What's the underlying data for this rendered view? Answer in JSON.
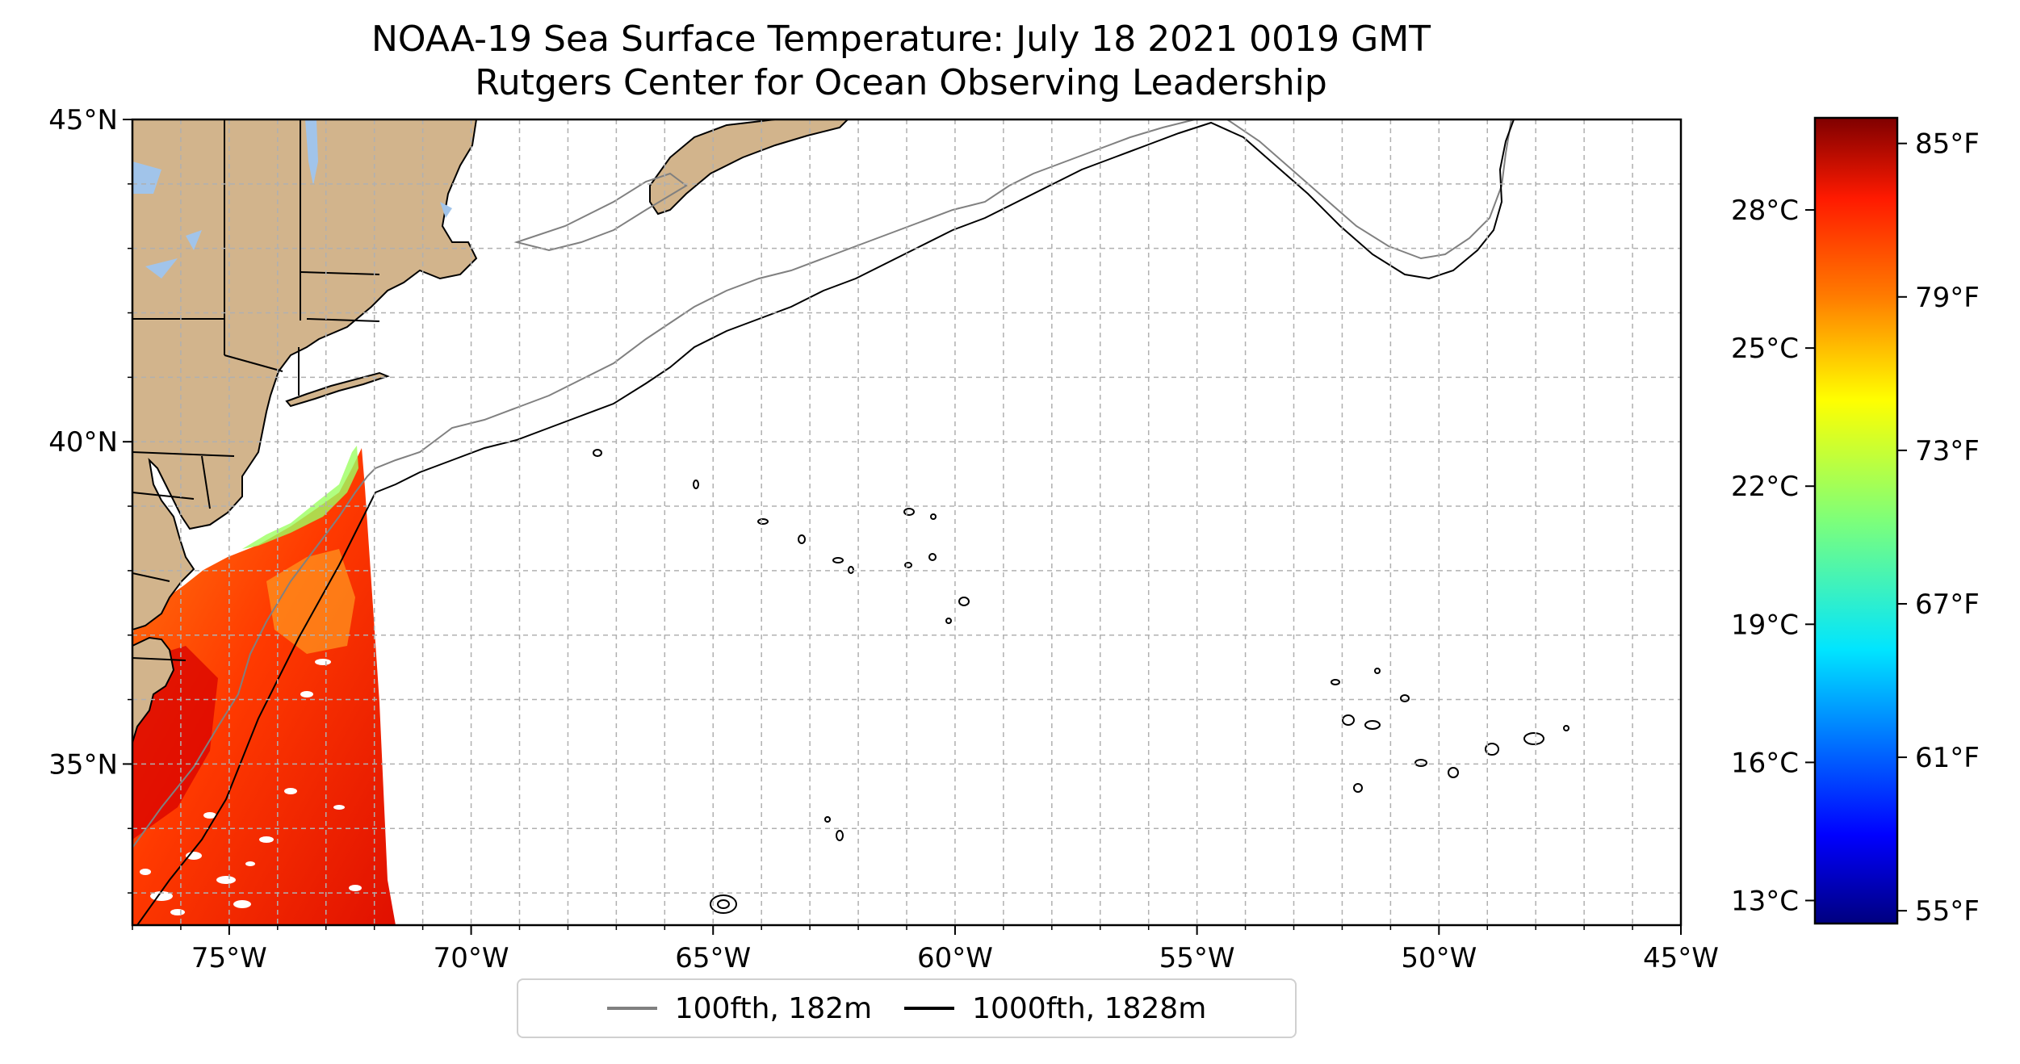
{
  "title": {
    "line1": "NOAA-19 Sea Surface Temperature: July 18 2021 0019 GMT",
    "line2": "Rutgers Center for Ocean Observing Leadership"
  },
  "map": {
    "extent": {
      "lon": [
        -77,
        -45
      ],
      "lat": [
        32.5,
        45
      ]
    },
    "lon_ticks": [
      {
        "lon": -75,
        "label": "75°W"
      },
      {
        "lon": -70,
        "label": "70°W"
      },
      {
        "lon": -65,
        "label": "65°W"
      },
      {
        "lon": -60,
        "label": "60°W"
      },
      {
        "lon": -55,
        "label": "55°W"
      },
      {
        "lon": -50,
        "label": "50°W"
      },
      {
        "lon": -45,
        "label": "45°W"
      }
    ],
    "lat_ticks": [
      {
        "lat": 35,
        "label": "35°N"
      },
      {
        "lat": 40,
        "label": "40°N"
      },
      {
        "lat": 45,
        "label": "45°N"
      }
    ],
    "grid": "dashed, 1° spacing",
    "colors": {
      "land": "#d2b48c",
      "lakes": "#a1c4ea",
      "isobath_100": "#808080",
      "isobath_1000": "#000000"
    }
  },
  "colorbar": {
    "colormap": "jet",
    "range_c": [
      12.5,
      30
    ],
    "celsius_ticks": [
      {
        "value": 13,
        "label": "13°C"
      },
      {
        "value": 16,
        "label": "16°C"
      },
      {
        "value": 19,
        "label": "19°C"
      },
      {
        "value": 22,
        "label": "22°C"
      },
      {
        "value": 25,
        "label": "25°C"
      },
      {
        "value": 28,
        "label": "28°C"
      }
    ],
    "fahrenheit_ticks": [
      {
        "value": 55,
        "label": "55°F"
      },
      {
        "value": 61,
        "label": "61°F"
      },
      {
        "value": 67,
        "label": "67°F"
      },
      {
        "value": 73,
        "label": "73°F"
      },
      {
        "value": 79,
        "label": "79°F"
      },
      {
        "value": 85,
        "label": "85°F"
      }
    ]
  },
  "legend": {
    "items": [
      {
        "label": "100fth, 182m",
        "color": "#808080"
      },
      {
        "label": "1000fth, 1828m",
        "color": "#000000"
      }
    ]
  }
}
